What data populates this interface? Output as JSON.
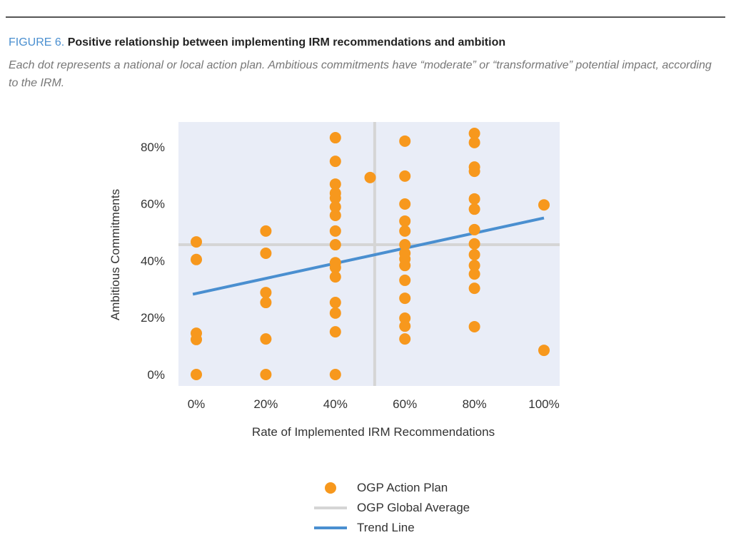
{
  "figure": {
    "label": "FIGURE 6.",
    "title": "Positive relationship between implementing IRM recommendations and ambition",
    "subtitle": "Each dot represents a national or local action plan. Ambitious commitments have “moderate” or “transformative” potential impact, according to the IRM."
  },
  "colors": {
    "accent_label": "#4a8fd0",
    "plot_background": "#e9edf7",
    "dots": "#f7981d",
    "average_lines": "#d5d5d5",
    "trend_line": "#4a8fd0"
  },
  "legend": [
    {
      "label": "OGP Action Plan",
      "type": "dot"
    },
    {
      "label": "OGP Global Average",
      "type": "line"
    },
    {
      "label": "Trend Line",
      "type": "line"
    }
  ],
  "chart_data": {
    "type": "scatter",
    "title": "Positive relationship between implementing IRM recommendations and ambition",
    "xlabel": "Rate of Implemented IRM Recommendations",
    "ylabel": "Ambitious Commitments",
    "xlim": [
      -5,
      105
    ],
    "ylim": [
      -4,
      88
    ],
    "x_ticks": [
      "0%",
      "20%",
      "40%",
      "60%",
      "80%",
      "100%"
    ],
    "x_tick_values": [
      0,
      20,
      40,
      60,
      80,
      100
    ],
    "y_ticks": [
      "0%",
      "20%",
      "40%",
      "60%",
      "80%"
    ],
    "y_tick_values": [
      0,
      20,
      40,
      60,
      80
    ],
    "grid": false,
    "legend_position": "bottom",
    "series": [
      {
        "name": "OGP Action Plan",
        "points": [
          [
            0,
            46.6
          ],
          [
            0,
            40.4
          ],
          [
            0,
            14.5
          ],
          [
            0,
            12.3
          ],
          [
            0,
            0
          ],
          [
            20,
            50.4
          ],
          [
            20,
            42.6
          ],
          [
            20,
            28.8
          ],
          [
            20,
            25.3
          ],
          [
            20,
            12.5
          ],
          [
            20,
            0
          ],
          [
            40,
            83.2
          ],
          [
            40,
            74.9
          ],
          [
            40,
            66.9
          ],
          [
            40,
            63.7
          ],
          [
            40,
            62
          ],
          [
            40,
            58.9
          ],
          [
            40,
            55.9
          ],
          [
            40,
            50.4
          ],
          [
            40,
            45.6
          ],
          [
            40,
            39.3
          ],
          [
            40,
            37.6
          ],
          [
            40,
            34.3
          ],
          [
            40,
            25.3
          ],
          [
            40,
            21.6
          ],
          [
            40,
            15
          ],
          [
            40,
            0
          ],
          [
            50,
            69.2
          ],
          [
            60,
            82
          ],
          [
            60,
            69.7
          ],
          [
            60,
            59.9
          ],
          [
            60,
            53.9
          ],
          [
            60,
            50.4
          ],
          [
            60,
            45.6
          ],
          [
            60,
            42.6
          ],
          [
            60,
            40.6
          ],
          [
            60,
            38.3
          ],
          [
            60,
            33.1
          ],
          [
            60,
            26.8
          ],
          [
            60,
            19.8
          ],
          [
            60,
            17
          ],
          [
            60,
            12.5
          ],
          [
            80,
            84.7
          ],
          [
            80,
            81.5
          ],
          [
            80,
            72.9
          ],
          [
            80,
            71.4
          ],
          [
            80,
            61.7
          ],
          [
            80,
            58.1
          ],
          [
            80,
            50.9
          ],
          [
            80,
            45.9
          ],
          [
            80,
            42.1
          ],
          [
            80,
            38.3
          ],
          [
            80,
            35.3
          ],
          [
            80,
            30.3
          ],
          [
            80,
            16.8
          ],
          [
            100,
            59.6
          ],
          [
            100,
            8.5
          ]
        ]
      },
      {
        "name": "OGP Global Average",
        "x_average": 51.3,
        "y_average": 45.6
      },
      {
        "name": "Trend Line",
        "points": [
          [
            -1,
            28.2
          ],
          [
            100,
            55
          ]
        ]
      }
    ]
  }
}
